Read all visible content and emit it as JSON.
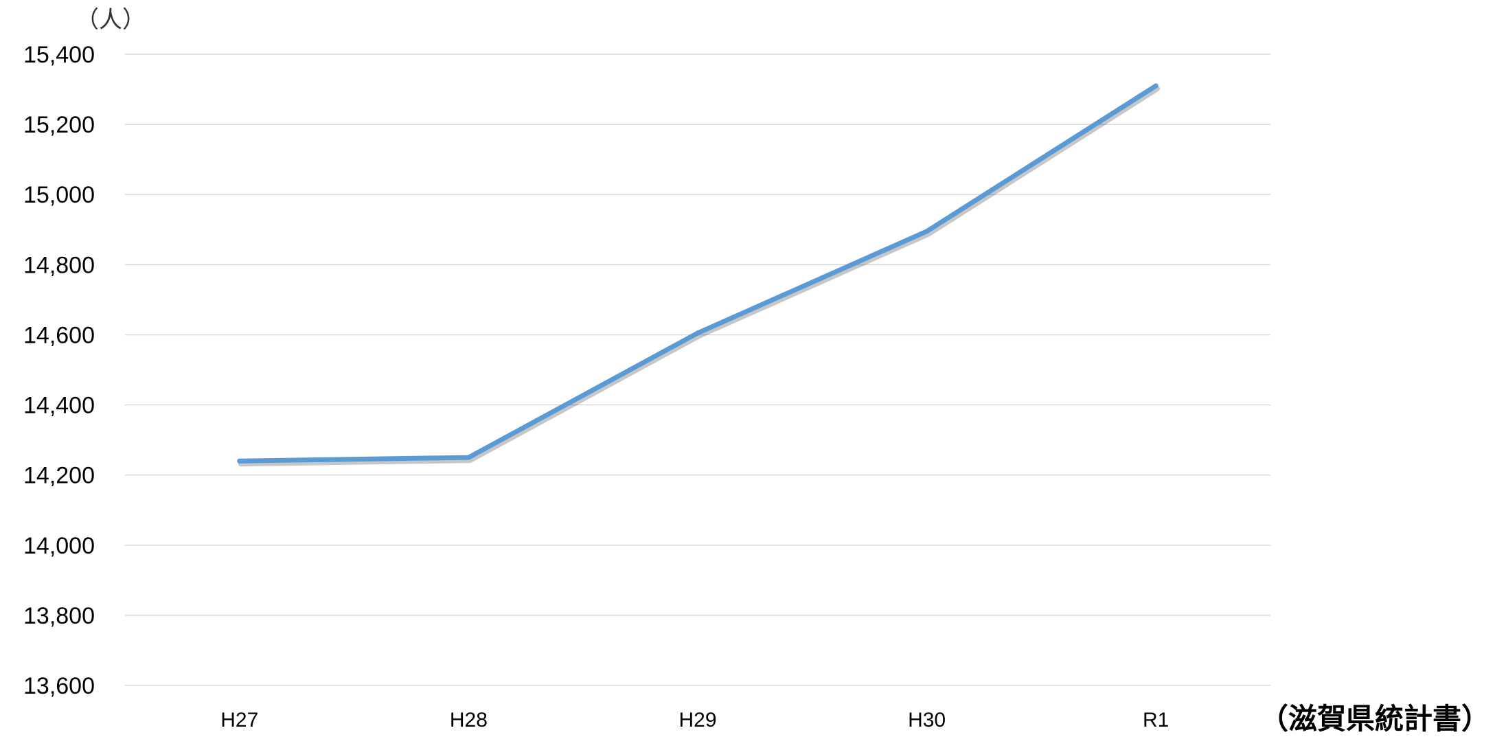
{
  "chart_data": {
    "type": "line",
    "unit_label": "（人）",
    "source_note": "（滋賀県統計書）",
    "categories": [
      "H27",
      "H28",
      "H29",
      "H30",
      "R1"
    ],
    "series": [
      {
        "values": [
          14240,
          14250,
          14605,
          14895,
          15310
        ],
        "color": "#5b9bd5"
      }
    ],
    "ylim": [
      13600,
      15400
    ],
    "ytick_step": 200,
    "ytick_labels": [
      "13,600",
      "13,800",
      "14,000",
      "14,200",
      "14,400",
      "14,600",
      "14,800",
      "15,000",
      "15,200",
      "15,400"
    ],
    "grid": true,
    "legend": "none"
  }
}
